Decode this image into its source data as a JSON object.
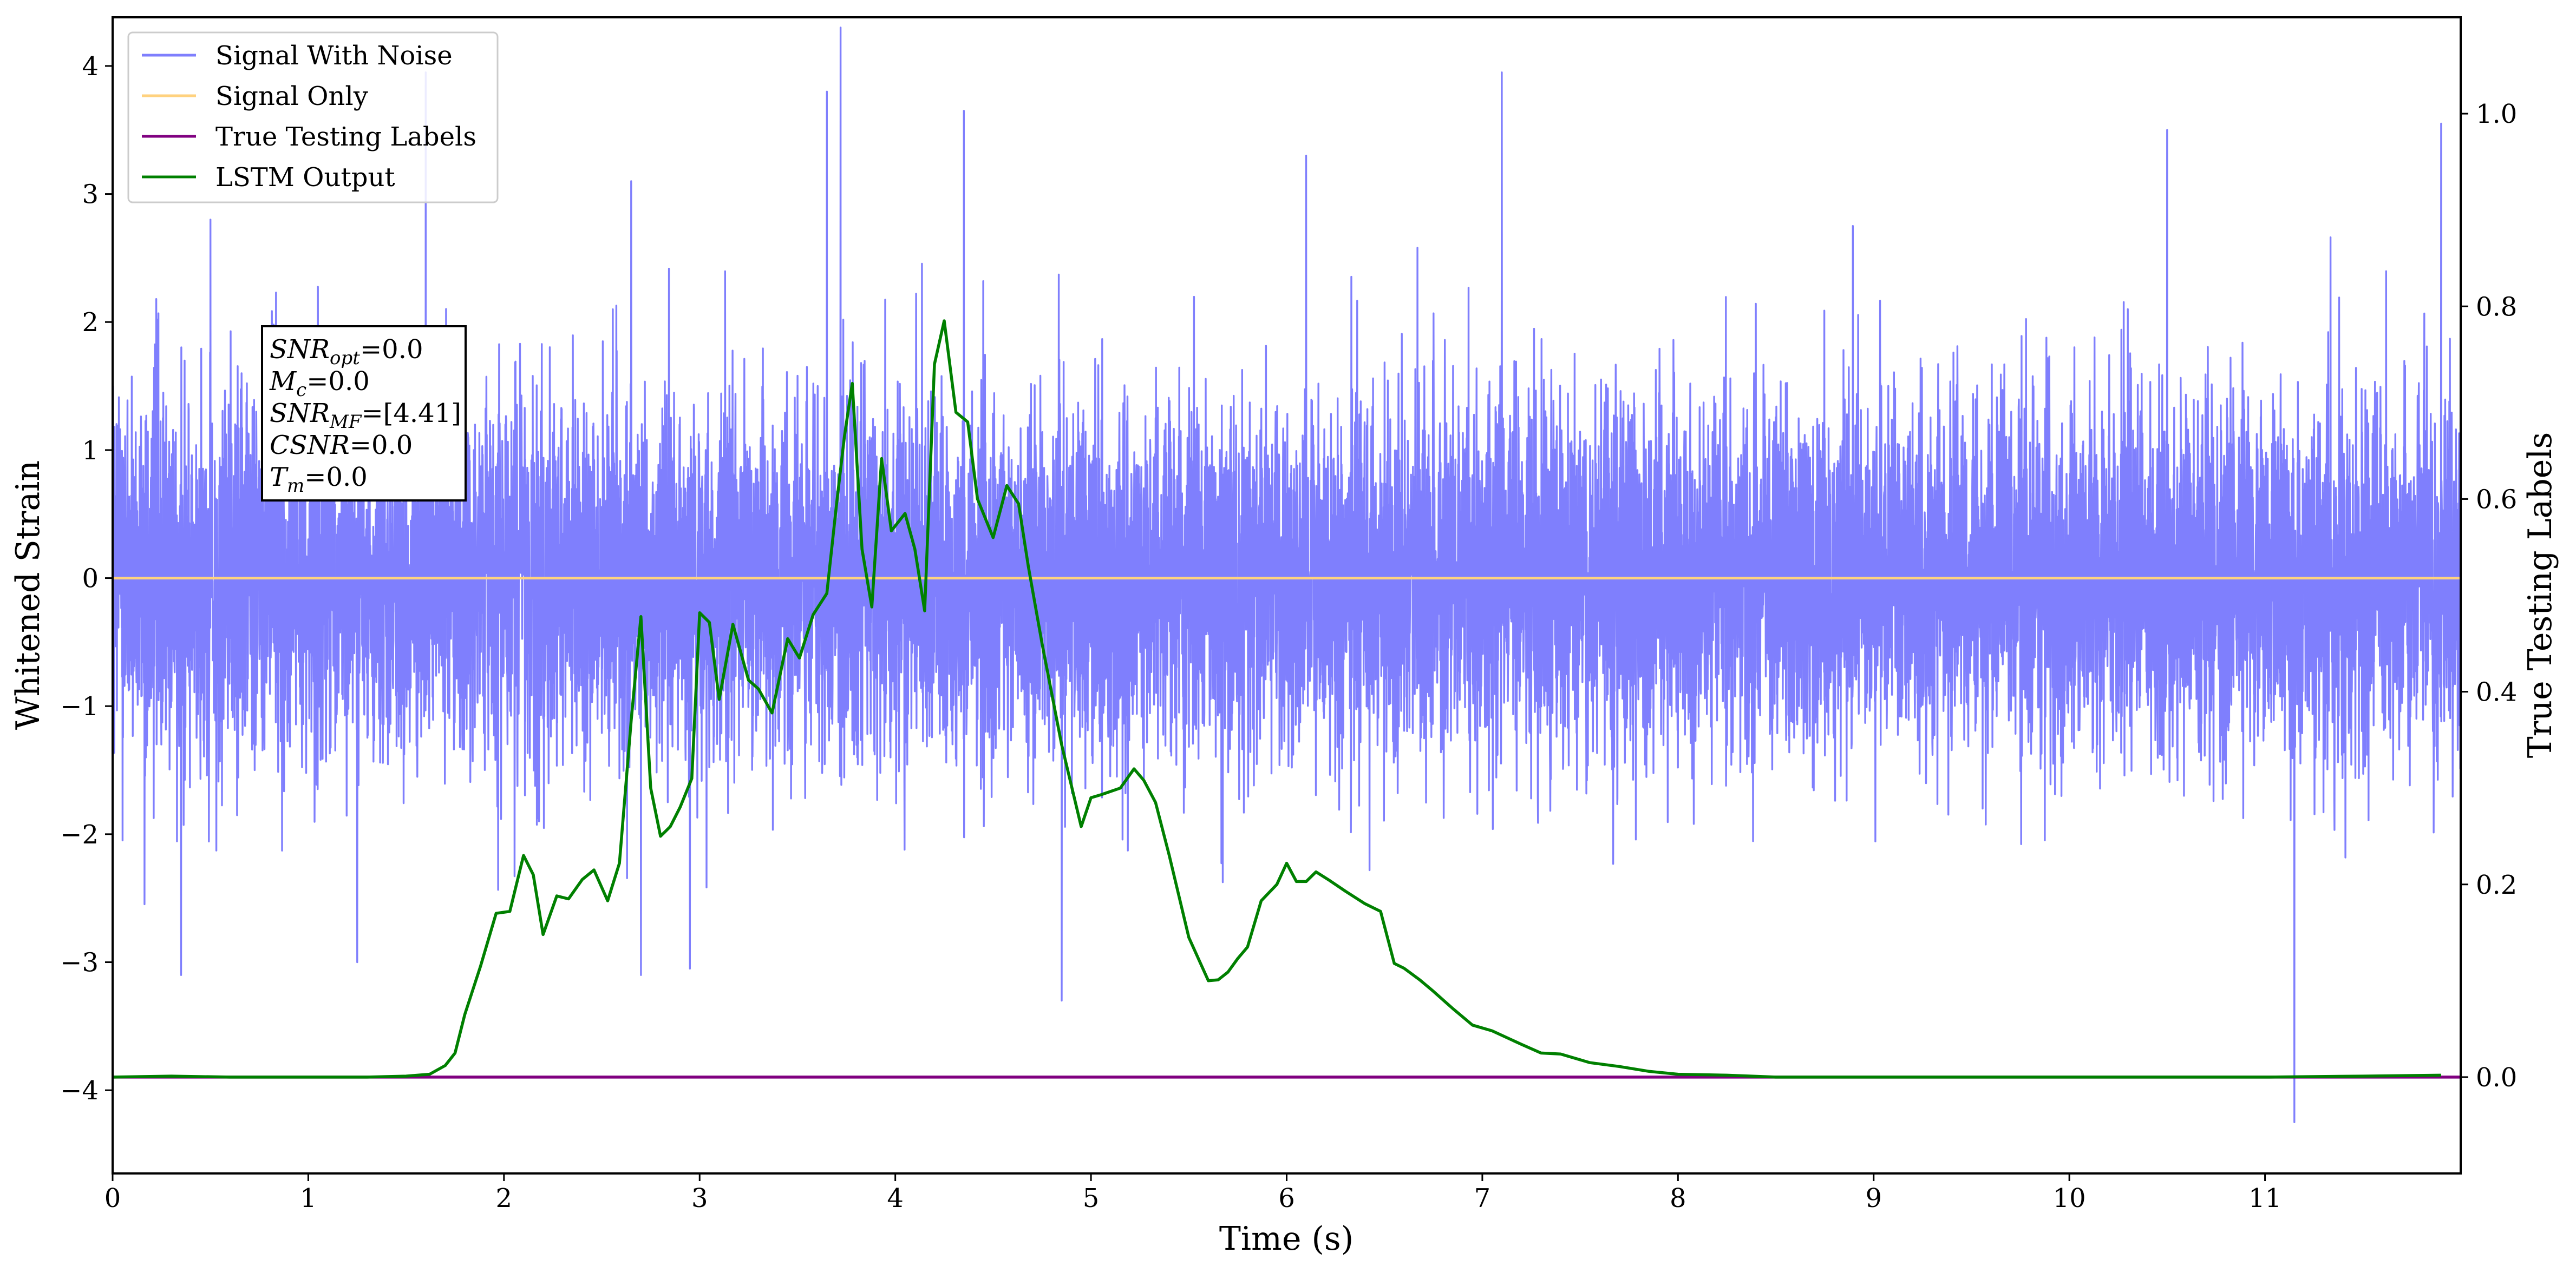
{
  "chart_data": {
    "type": "line",
    "xlabel": "Time (s)",
    "ylabel": "Whitened Strain",
    "y2label": "True Testing Labels",
    "xlim": [
      0,
      12
    ],
    "ylim": [
      -4.65,
      4.38
    ],
    "y2lim": [
      -0.1,
      1.1
    ],
    "x_ticks": [
      0,
      1,
      2,
      3,
      4,
      5,
      6,
      7,
      8,
      9,
      10,
      11
    ],
    "x_tick_labels": [
      "0",
      "1",
      "2",
      "3",
      "4",
      "5",
      "6",
      "7",
      "8",
      "9",
      "10",
      "11"
    ],
    "y_ticks": [
      -4,
      -3,
      -2,
      -1,
      0,
      1,
      2,
      3,
      4
    ],
    "y_tick_labels": [
      "−4",
      "−3",
      "−2",
      "−1",
      "0",
      "1",
      "2",
      "3",
      "4"
    ],
    "y2_ticks": [
      0.0,
      0.2,
      0.4,
      0.6,
      0.8,
      1.0
    ],
    "y2_tick_labels": [
      "0.0",
      "0.2",
      "0.4",
      "0.6",
      "0.8",
      "1.0"
    ],
    "grid": false,
    "legend_position": "top-left",
    "series": [
      {
        "name": "Signal With Noise",
        "axis": "left",
        "color": "#7f7ffd",
        "kind": "noise",
        "x_range": [
          0,
          12
        ],
        "typical_band": [
          -1.3,
          1.3
        ],
        "peaks_up": [
          [
            0.5,
            2.8
          ],
          [
            1.6,
            3.95
          ],
          [
            2.65,
            3.1
          ],
          [
            3.65,
            3.8
          ],
          [
            3.72,
            4.3
          ],
          [
            4.35,
            3.65
          ],
          [
            6.1,
            3.3
          ],
          [
            7.1,
            3.95
          ],
          [
            10.5,
            3.5
          ],
          [
            11.9,
            3.55
          ]
        ],
        "peaks_down": [
          [
            0.35,
            -3.1
          ],
          [
            1.25,
            -3.0
          ],
          [
            2.7,
            -3.1
          ],
          [
            2.95,
            -3.05
          ],
          [
            4.85,
            -3.3
          ],
          [
            11.15,
            -4.25
          ]
        ]
      },
      {
        "name": "Signal Only",
        "axis": "left",
        "color": "#ffd27f",
        "x": [
          0,
          12
        ],
        "y": [
          0,
          0
        ]
      },
      {
        "name": "True Testing Labels",
        "axis": "right",
        "color": "#800080",
        "x": [
          0,
          12
        ],
        "y": [
          0,
          0
        ]
      },
      {
        "name": "LSTM Output",
        "axis": "right",
        "color": "#008000",
        "x": [
          0,
          0.3,
          0.6,
          1.0,
          1.3,
          1.5,
          1.62,
          1.7,
          1.75,
          1.8,
          1.88,
          1.96,
          2.03,
          2.1,
          2.15,
          2.2,
          2.27,
          2.33,
          2.4,
          2.46,
          2.53,
          2.59,
          2.65,
          2.7,
          2.75,
          2.8,
          2.85,
          2.9,
          2.96,
          3.0,
          3.05,
          3.1,
          3.17,
          3.25,
          3.3,
          3.37,
          3.45,
          3.51,
          3.58,
          3.65,
          3.7,
          3.74,
          3.78,
          3.83,
          3.88,
          3.93,
          3.98,
          4.05,
          4.1,
          4.15,
          4.2,
          4.25,
          4.31,
          4.37,
          4.42,
          4.5,
          4.57,
          4.63,
          4.68,
          4.75,
          4.85,
          4.95,
          5.0,
          5.05,
          5.15,
          5.22,
          5.27,
          5.33,
          5.4,
          5.5,
          5.6,
          5.65,
          5.7,
          5.75,
          5.8,
          5.87,
          5.95,
          6.0,
          6.05,
          6.1,
          6.15,
          6.22,
          6.3,
          6.4,
          6.48,
          6.55,
          6.6,
          6.68,
          6.75,
          6.85,
          6.95,
          7.05,
          7.2,
          7.3,
          7.4,
          7.55,
          7.7,
          7.85,
          8.0,
          8.25,
          8.5,
          9.0,
          9.5,
          10.0,
          10.5,
          11.0,
          11.5,
          11.9
        ],
        "y": [
          0.0,
          0.001,
          0.0,
          0.0,
          0.0,
          0.001,
          0.003,
          0.012,
          0.025,
          0.065,
          0.115,
          0.17,
          0.172,
          0.23,
          0.21,
          0.148,
          0.188,
          0.185,
          0.205,
          0.215,
          0.183,
          0.222,
          0.37,
          0.478,
          0.3,
          0.25,
          0.26,
          0.28,
          0.31,
          0.482,
          0.472,
          0.392,
          0.47,
          0.412,
          0.403,
          0.378,
          0.455,
          0.435,
          0.48,
          0.502,
          0.595,
          0.665,
          0.72,
          0.548,
          0.488,
          0.642,
          0.567,
          0.585,
          0.548,
          0.484,
          0.74,
          0.785,
          0.69,
          0.68,
          0.6,
          0.56,
          0.614,
          0.595,
          0.53,
          0.45,
          0.345,
          0.26,
          0.29,
          0.293,
          0.3,
          0.32,
          0.308,
          0.285,
          0.23,
          0.145,
          0.1,
          0.101,
          0.109,
          0.123,
          0.135,
          0.183,
          0.2,
          0.222,
          0.203,
          0.203,
          0.213,
          0.204,
          0.193,
          0.18,
          0.172,
          0.118,
          0.113,
          0.101,
          0.089,
          0.071,
          0.054,
          0.048,
          0.034,
          0.025,
          0.024,
          0.015,
          0.011,
          0.006,
          0.003,
          0.002,
          0.0,
          0.0,
          0.0,
          0.0,
          0.0,
          0.0,
          0.001,
          0.002
        ]
      }
    ],
    "annotation_box": {
      "position": "upper-left",
      "lines": [
        {
          "main": "SNR",
          "sub": "opt",
          "rest": "=0.0"
        },
        {
          "main": "M",
          "sub": "c",
          "rest": "=0.0"
        },
        {
          "main": "SNR",
          "sub": "MF",
          "rest": "=[4.41]"
        },
        {
          "main": "CSNR",
          "sub": "",
          "rest": "=0.0"
        },
        {
          "main": "T",
          "sub": "m",
          "rest": "=0.0"
        }
      ]
    }
  }
}
